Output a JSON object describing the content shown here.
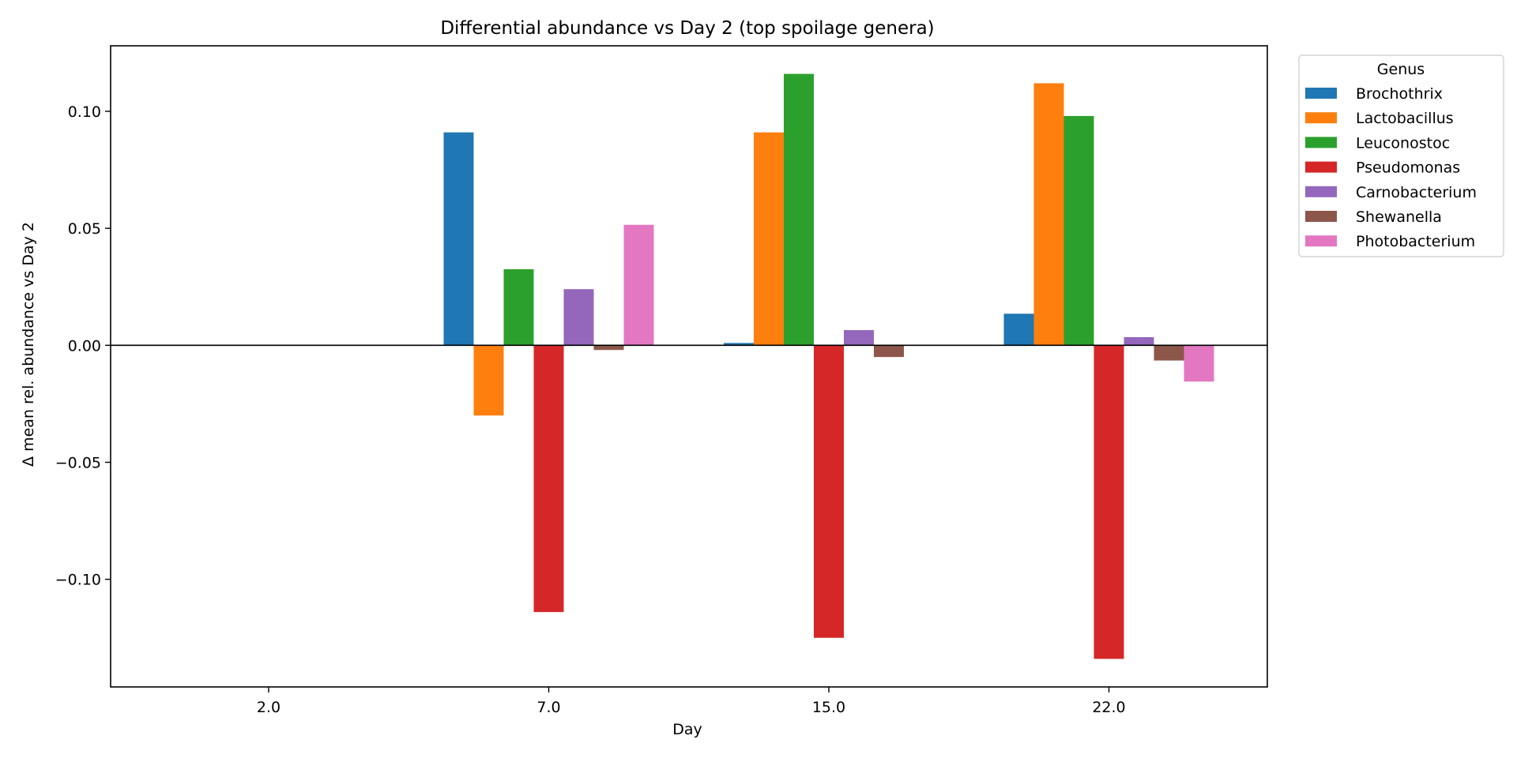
{
  "chart_data": {
    "type": "bar",
    "title": "Differential abundance vs Day 2 (top spoilage genera)",
    "xlabel": "Day",
    "ylabel": "Δ mean rel. abundance vs Day 2",
    "categories": [
      "2.0",
      "7.0",
      "15.0",
      "22.0"
    ],
    "ylim": [
      -0.146,
      0.128
    ],
    "yticks": [
      -0.1,
      -0.05,
      0.0,
      0.05,
      0.1
    ],
    "ytick_labels": [
      "−0.10",
      "−0.05",
      "0.00",
      "0.05",
      "0.10"
    ],
    "zero_line": true,
    "grid": false,
    "legend": {
      "title": "Genus",
      "placement": "outside-top-right"
    },
    "series": [
      {
        "name": "Brochothrix",
        "color": "#1f77b4",
        "values": [
          0,
          0.091,
          0.001,
          0.0135
        ]
      },
      {
        "name": "Lactobacillus",
        "color": "#ff7f0e",
        "values": [
          0,
          -0.03,
          0.091,
          0.112
        ]
      },
      {
        "name": "Leuconostoc",
        "color": "#2ca02c",
        "values": [
          0,
          0.0325,
          0.116,
          0.098
        ]
      },
      {
        "name": "Pseudomonas",
        "color": "#d62728",
        "values": [
          0,
          -0.114,
          -0.125,
          -0.134
        ]
      },
      {
        "name": "Carnobacterium",
        "color": "#9467bd",
        "values": [
          0,
          0.024,
          0.0065,
          0.0035
        ]
      },
      {
        "name": "Shewanella",
        "color": "#8c564b",
        "values": [
          0,
          -0.002,
          -0.005,
          -0.0065
        ]
      },
      {
        "name": "Photobacterium",
        "color": "#e377c2",
        "values": [
          0,
          0.0515,
          0,
          -0.0155
        ]
      }
    ]
  }
}
